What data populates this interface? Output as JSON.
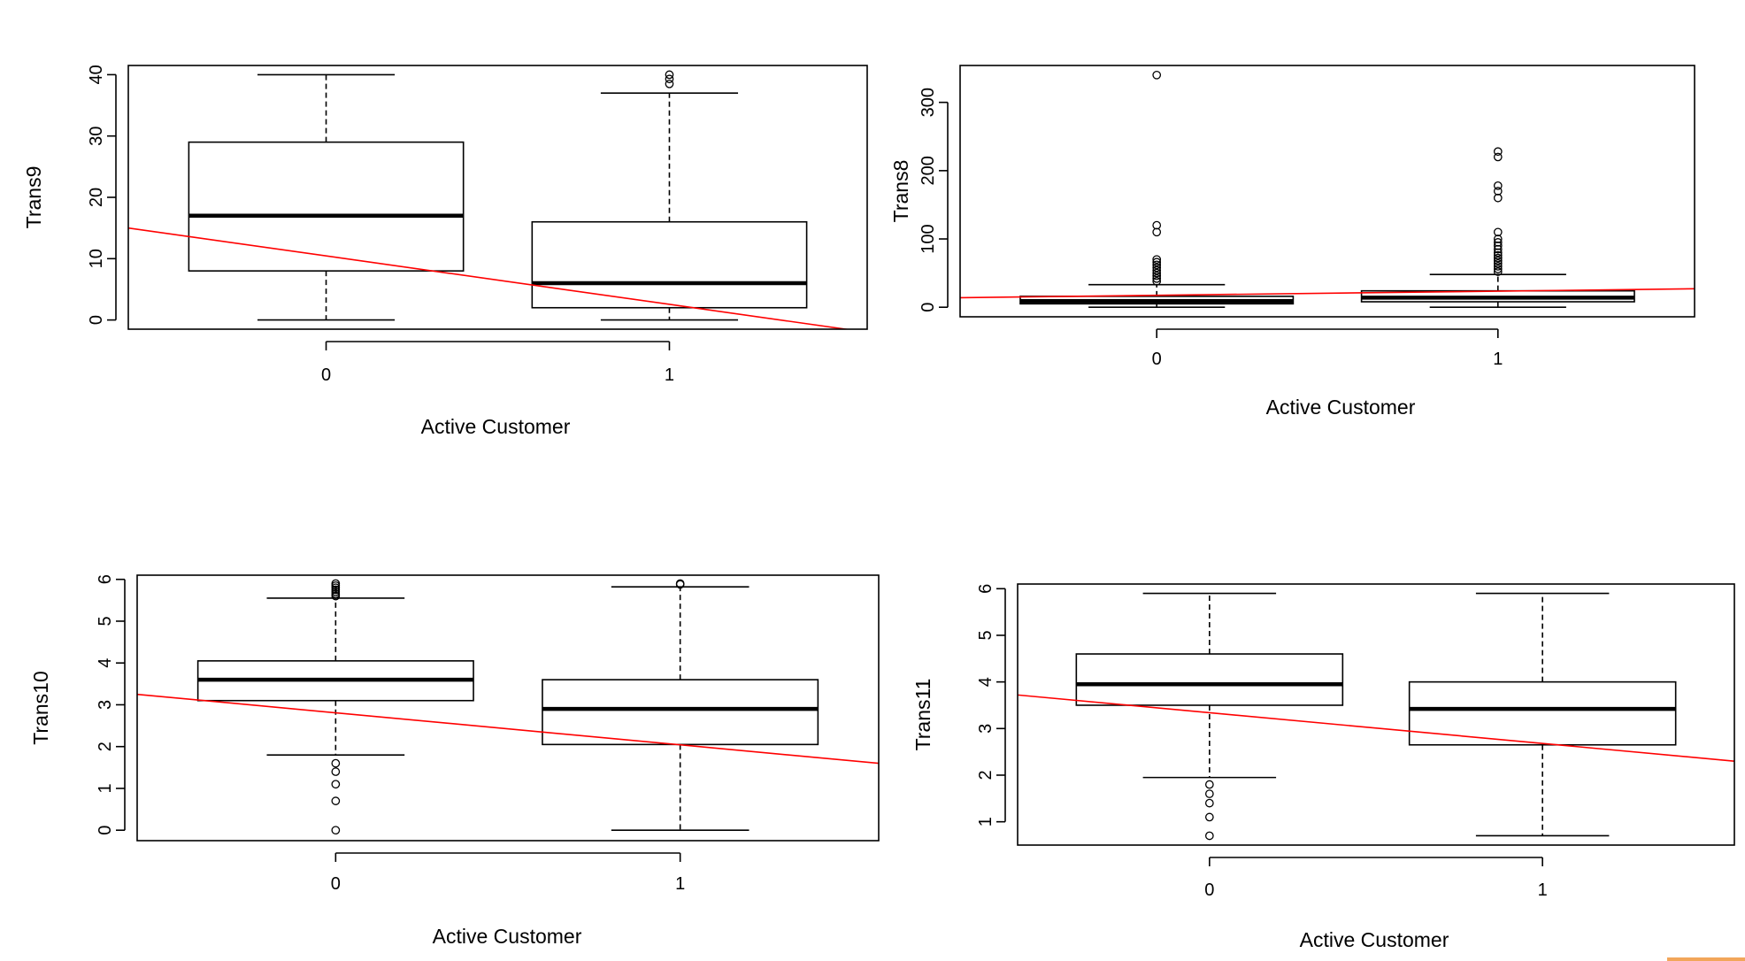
{
  "chart_data": [
    {
      "type": "box",
      "xlabel": "Active Customer",
      "ylabel": "Trans9",
      "categories": [
        "0",
        "1"
      ],
      "ylim": [
        -1.5,
        41.5
      ],
      "yticks": [
        0,
        10,
        20,
        30,
        40
      ],
      "boxes": [
        {
          "category": "0",
          "whisker_low": 0,
          "q1": 8,
          "median": 17,
          "q3": 29,
          "whisker_high": 40,
          "outliers": []
        },
        {
          "category": "1",
          "whisker_low": 0,
          "q1": 2,
          "median": 6,
          "q3": 16,
          "whisker_high": 37,
          "outliers": [
            38.5,
            39.3,
            40
          ]
        }
      ],
      "trend_line": {
        "color": "#ff0000",
        "y_at_x_minus_0_58": 15,
        "y_at_x_1_58": -2
      }
    },
    {
      "type": "box",
      "xlabel": "Active Customer",
      "ylabel": "Trans8",
      "categories": [
        "0",
        "1"
      ],
      "ylim": [
        -14,
        354
      ],
      "yticks": [
        0,
        100,
        200,
        300
      ],
      "boxes": [
        {
          "category": "0",
          "whisker_low": 0,
          "q1": 5,
          "median": 9,
          "q3": 16,
          "whisker_high": 33,
          "outliers": [
            38,
            42,
            46,
            50,
            54,
            58,
            62,
            66,
            70,
            110,
            120,
            340
          ]
        },
        {
          "category": "1",
          "whisker_low": 0,
          "q1": 8,
          "median": 14,
          "q3": 24,
          "whisker_high": 48,
          "outliers": [
            52,
            56,
            60,
            64,
            68,
            72,
            76,
            80,
            85,
            90,
            95,
            100,
            110,
            160,
            170,
            178,
            220,
            228
          ]
        }
      ],
      "trend_line": {
        "color": "#ff0000",
        "y_at_x_minus_0_58": 14,
        "y_at_x_1_58": 27
      }
    },
    {
      "type": "box",
      "xlabel": "Active Customer",
      "ylabel": "Trans10",
      "categories": [
        "0",
        "1"
      ],
      "ylim": [
        -0.25,
        6.1
      ],
      "yticks": [
        0,
        1,
        2,
        3,
        4,
        5,
        6
      ],
      "boxes": [
        {
          "category": "0",
          "whisker_low": 1.8,
          "q1": 3.1,
          "median": 3.6,
          "q3": 4.05,
          "whisker_high": 5.55,
          "outliers": [
            0,
            0.7,
            1.1,
            1.4,
            1.6,
            5.6,
            5.65,
            5.7,
            5.75,
            5.8,
            5.85,
            5.9
          ]
        },
        {
          "category": "1",
          "whisker_low": 0,
          "q1": 2.05,
          "median": 2.9,
          "q3": 3.6,
          "whisker_high": 5.82,
          "outliers": [
            5.88,
            5.9
          ]
        }
      ],
      "trend_line": {
        "color": "#ff0000",
        "y_at_x_minus_0_58": 3.25,
        "y_at_x_1_58": 1.6
      }
    },
    {
      "type": "box",
      "xlabel": "Active Customer",
      "ylabel": "Trans11",
      "categories": [
        "0",
        "1"
      ],
      "ylim": [
        0.5,
        6.1
      ],
      "yticks": [
        1,
        2,
        3,
        4,
        5,
        6
      ],
      "boxes": [
        {
          "category": "0",
          "whisker_low": 1.95,
          "q1": 3.5,
          "median": 3.95,
          "q3": 4.6,
          "whisker_high": 5.9,
          "outliers": [
            0.7,
            1.1,
            1.4,
            1.6,
            1.8
          ]
        },
        {
          "category": "1",
          "whisker_low": 0.7,
          "q1": 2.65,
          "median": 3.42,
          "q3": 4.0,
          "whisker_high": 5.9,
          "outliers": []
        }
      ],
      "trend_line": {
        "color": "#ff0000",
        "y_at_x_minus_0_58": 3.72,
        "y_at_x_1_58": 2.3
      }
    }
  ]
}
